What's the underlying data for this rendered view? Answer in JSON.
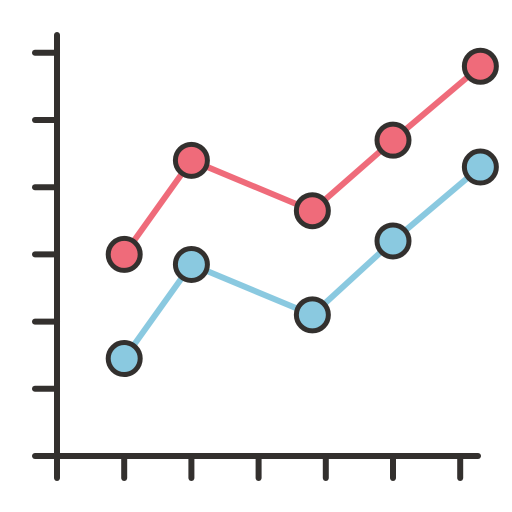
{
  "chart_data": {
    "type": "line",
    "x": [
      1,
      2,
      3.8,
      5,
      6.3
    ],
    "xlim": [
      0,
      6.4
    ],
    "xticks": [
      1,
      2,
      3,
      4,
      5,
      6
    ],
    "ylim": [
      0,
      6.25
    ],
    "yticks": [
      1,
      2,
      3,
      4,
      5,
      6
    ],
    "grid": false,
    "legend": "none",
    "series": [
      {
        "values": [
          3,
          4.4,
          3.65,
          4.7,
          5.8
        ],
        "color": "#EF6B7A"
      },
      {
        "values": [
          1.45,
          2.85,
          2.1,
          3.2,
          4.3
        ],
        "color": "#8AC9E0"
      }
    ],
    "axis_color": "#33302E"
  }
}
